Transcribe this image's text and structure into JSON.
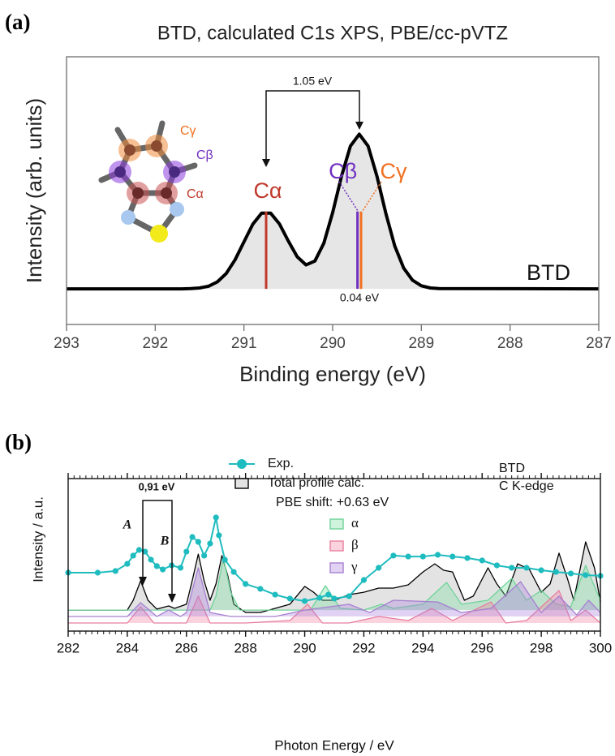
{
  "chart_data": [
    {
      "type": "line",
      "panel": "(a)",
      "title": "BTD, calculated C1s XPS, PBE/cc-pVTZ",
      "xlabel": "Binding energy (eV)",
      "ylabel": "Intensity (arb. units)",
      "xlim": [
        293,
        287
      ],
      "xticks": [
        293,
        292,
        291,
        290,
        289,
        288,
        287
      ],
      "ylim": [
        -0.23,
        1.5
      ],
      "series": [
        {
          "color": "#000000",
          "fill": "#e6e6e6",
          "x": [
            293,
            291.7,
            291.6,
            291.5,
            291.4,
            291.3,
            291.2,
            291.1,
            291.0,
            290.9,
            290.8,
            290.7,
            290.6,
            290.5,
            290.4,
            290.3,
            290.2,
            290.1,
            290.0,
            289.9,
            289.8,
            289.7,
            289.6,
            289.5,
            289.4,
            289.3,
            289.2,
            289.1,
            289.0,
            288.9,
            288.8,
            287
          ],
          "values": [
            0,
            0,
            0.002,
            0.006,
            0.017,
            0.045,
            0.099,
            0.188,
            0.304,
            0.418,
            0.49,
            0.49,
            0.42,
            0.31,
            0.208,
            0.155,
            0.18,
            0.295,
            0.493,
            0.728,
            0.923,
            1.0,
            0.923,
            0.726,
            0.487,
            0.278,
            0.135,
            0.056,
            0.02,
            0.006,
            0.002,
            0
          ]
        }
      ],
      "sticks": [
        {
          "name": "Cα",
          "color": "#c0392b",
          "x": 290.75,
          "value": 0.5
        },
        {
          "name": "Cβ",
          "color": "#7030c0",
          "x": 289.72,
          "value": 0.5
        },
        {
          "name": "Cγ",
          "color": "#f07020",
          "x": 289.68,
          "value": 0.5
        }
      ],
      "annotations": [
        "1.05 eV",
        "0.04 eV",
        "BTD"
      ],
      "molecule_labels": [
        "Cγ",
        "Cβ",
        "Cα"
      ]
    },
    {
      "type": "line",
      "panel": "(b)",
      "xlabel": "Photon Energy / eV",
      "ylabel": "Intensity / a.u.",
      "xlim": [
        282,
        300
      ],
      "xticks": [
        282,
        284,
        286,
        288,
        290,
        292,
        294,
        296,
        298,
        300
      ],
      "ylim": [
        0,
        10
      ],
      "series": [
        {
          "name": "Exp.",
          "color": "#1fbcbf",
          "marker": true,
          "x": [
            282,
            283,
            283.6,
            284,
            284.2,
            284.4,
            284.6,
            284.8,
            285,
            285.2,
            285.5,
            285.8,
            286,
            286.2,
            286.4,
            286.6,
            286.8,
            287,
            287.1,
            287.3,
            287.6,
            288,
            288.5,
            289,
            289.5,
            290,
            290.5,
            290.8,
            291,
            291.5,
            292,
            292.5,
            293,
            293.5,
            294,
            294.5,
            295,
            295.5,
            296,
            296.5,
            297,
            297.5,
            298,
            298.5,
            299,
            299.5,
            300
          ],
          "values": [
            3.83,
            3.83,
            3.94,
            4.41,
            4.95,
            5.32,
            5.21,
            4.68,
            4.26,
            4.04,
            4.31,
            4.15,
            5.21,
            6.17,
            5.85,
            4.95,
            5.74,
            7.45,
            6.28,
            4.68,
            3.88,
            3.09,
            2.77,
            2.39,
            2.13,
            1.97,
            2.18,
            2.39,
            2.13,
            2.29,
            3.35,
            4.15,
            4.95,
            4.89,
            4.89,
            5,
            4.89,
            4.79,
            4.63,
            4.31,
            4.15,
            4.15,
            3.99,
            3.88,
            3.78,
            3.67,
            3.62
          ]
        },
        {
          "name": "Total profile calc.",
          "color": "#000000",
          "fill": "#e3e3e3",
          "x": [
            282,
            284,
            284.2,
            284.45,
            284.7,
            285,
            285.4,
            285.6,
            286,
            286.2,
            286.4,
            286.6,
            286.8,
            287,
            287.2,
            287.4,
            287.6,
            288,
            288.5,
            289,
            289.5,
            290,
            290.3,
            290.6,
            291,
            291.5,
            292,
            292.5,
            293,
            293.5,
            294,
            294.4,
            294.7,
            295,
            295.4,
            295.7,
            296.2,
            296.5,
            296.8,
            297.2,
            297.6,
            298,
            298.3,
            298.6,
            298.9,
            299.1,
            299.5,
            299.8,
            300
          ],
          "values": [
            1.38,
            1.38,
            2.02,
            3.3,
            2.02,
            1.44,
            1.65,
            1.49,
            1.76,
            3.35,
            5.05,
            3.3,
            2.02,
            3.09,
            4.95,
            3.62,
            1.76,
            1.22,
            1.22,
            1.49,
            1.76,
            2.93,
            2.55,
            2.02,
            2.02,
            2.39,
            2.55,
            2.82,
            2.82,
            3.03,
            3.88,
            4.41,
            3.99,
            3.88,
            2.02,
            2.29,
            4.15,
            3.09,
            2.29,
            4.41,
            4.04,
            2.55,
            3.09,
            5.11,
            3.35,
            2.02,
            5.85,
            4.15,
            1.91
          ]
        },
        {
          "name": "α",
          "color": "#6fd39a",
          "fill": "rgba(120,220,160,0.35)",
          "x": [
            282,
            286.8,
            287,
            287.25,
            287.5,
            287.8,
            290.2,
            290.7,
            291.2,
            292,
            292.6,
            293,
            294,
            294.8,
            295.3,
            296.2,
            297,
            297.5,
            298,
            298.5,
            299,
            299.5,
            300
          ],
          "values": [
            1.38,
            1.38,
            2.29,
            4.79,
            2.55,
            1.38,
            1.38,
            2.98,
            1.49,
            1.38,
            1.76,
            1.49,
            1.76,
            3.19,
            1.76,
            2.02,
            3.46,
            2.02,
            2.66,
            1.76,
            1.6,
            4.31,
            2.02
          ]
        },
        {
          "name": "β",
          "color": "#e87fa0",
          "fill": "rgba(240,130,160,0.35)",
          "x": [
            282,
            284,
            284.45,
            284.9,
            286,
            286.4,
            286.8,
            288,
            289.5,
            290.1,
            290.6,
            291.5,
            292.5,
            293.5,
            294.3,
            295,
            296.3,
            296.8,
            297.5,
            298.6,
            299,
            299.5,
            300
          ],
          "values": [
            0.53,
            0.53,
            1.6,
            0.53,
            0.53,
            2.29,
            0.53,
            0.53,
            0.69,
            1.76,
            0.53,
            0.53,
            0.96,
            0.69,
            1.49,
            0.69,
            1.91,
            0.53,
            0.69,
            2.66,
            0.69,
            1.38,
            0.53
          ]
        },
        {
          "name": "γ",
          "color": "#a67fd0",
          "fill": "rgba(170,125,220,0.35)",
          "x": [
            282,
            284,
            284.45,
            285,
            285.4,
            285.8,
            286,
            286.4,
            286.8,
            287.5,
            289,
            290,
            291.5,
            292.2,
            293,
            294.5,
            295.3,
            296.3,
            297.3,
            298,
            298.6,
            299.2,
            299.6,
            300
          ],
          "values": [
            0.96,
            0.96,
            1.86,
            0.96,
            1.38,
            0.96,
            1.22,
            4.15,
            1.22,
            0.96,
            0.96,
            1.38,
            1.76,
            1.22,
            2.02,
            1.91,
            1.22,
            1.49,
            3.24,
            1.22,
            2.29,
            1.06,
            2.02,
            1.22
          ]
        }
      ],
      "annotations": [
        "PBE shift: +0.63 eV",
        "BTD",
        "C K-edge",
        "0,91 eV",
        "A",
        "B"
      ]
    }
  ]
}
